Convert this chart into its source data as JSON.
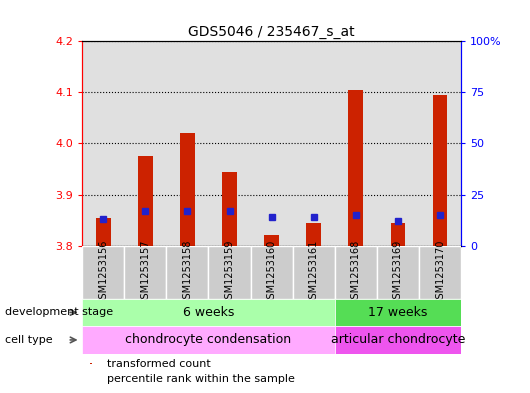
{
  "title": "GDS5046 / 235467_s_at",
  "samples": [
    "GSM1253156",
    "GSM1253157",
    "GSM1253158",
    "GSM1253159",
    "GSM1253160",
    "GSM1253161",
    "GSM1253168",
    "GSM1253169",
    "GSM1253170"
  ],
  "transformed_count": [
    3.855,
    3.975,
    4.02,
    3.945,
    3.82,
    3.845,
    4.105,
    3.845,
    4.095
  ],
  "percentile_rank": [
    13,
    17,
    17,
    17,
    14,
    14,
    15,
    12,
    15
  ],
  "ylim_left": [
    3.8,
    4.2
  ],
  "ylim_right": [
    0,
    100
  ],
  "yticks_left": [
    3.8,
    3.9,
    4.0,
    4.1,
    4.2
  ],
  "yticks_right": [
    0,
    25,
    50,
    75,
    100
  ],
  "ytick_labels_right": [
    "0",
    "25",
    "50",
    "75",
    "100%"
  ],
  "bar_color": "#cc2200",
  "dot_color": "#2222cc",
  "baseline": 3.8,
  "groups": [
    {
      "label": "6 weeks",
      "start": 0,
      "end": 6,
      "color": "#aaffaa"
    },
    {
      "label": "17 weeks",
      "start": 6,
      "end": 9,
      "color": "#55dd55"
    }
  ],
  "cell_types": [
    {
      "label": "chondrocyte condensation",
      "start": 0,
      "end": 6,
      "color": "#ffaaff"
    },
    {
      "label": "articular chondrocyte",
      "start": 6,
      "end": 9,
      "color": "#ee55ee"
    }
  ],
  "dev_stage_label": "development stage",
  "cell_type_label": "cell type",
  "legend_items": [
    {
      "color": "#cc2200",
      "label": "transformed count"
    },
    {
      "color": "#2222cc",
      "label": "percentile rank within the sample"
    }
  ],
  "bar_color_bg": "#cccccc",
  "bar_width": 0.35,
  "title_fontsize": 10,
  "tick_fontsize": 8,
  "label_fontsize": 8
}
